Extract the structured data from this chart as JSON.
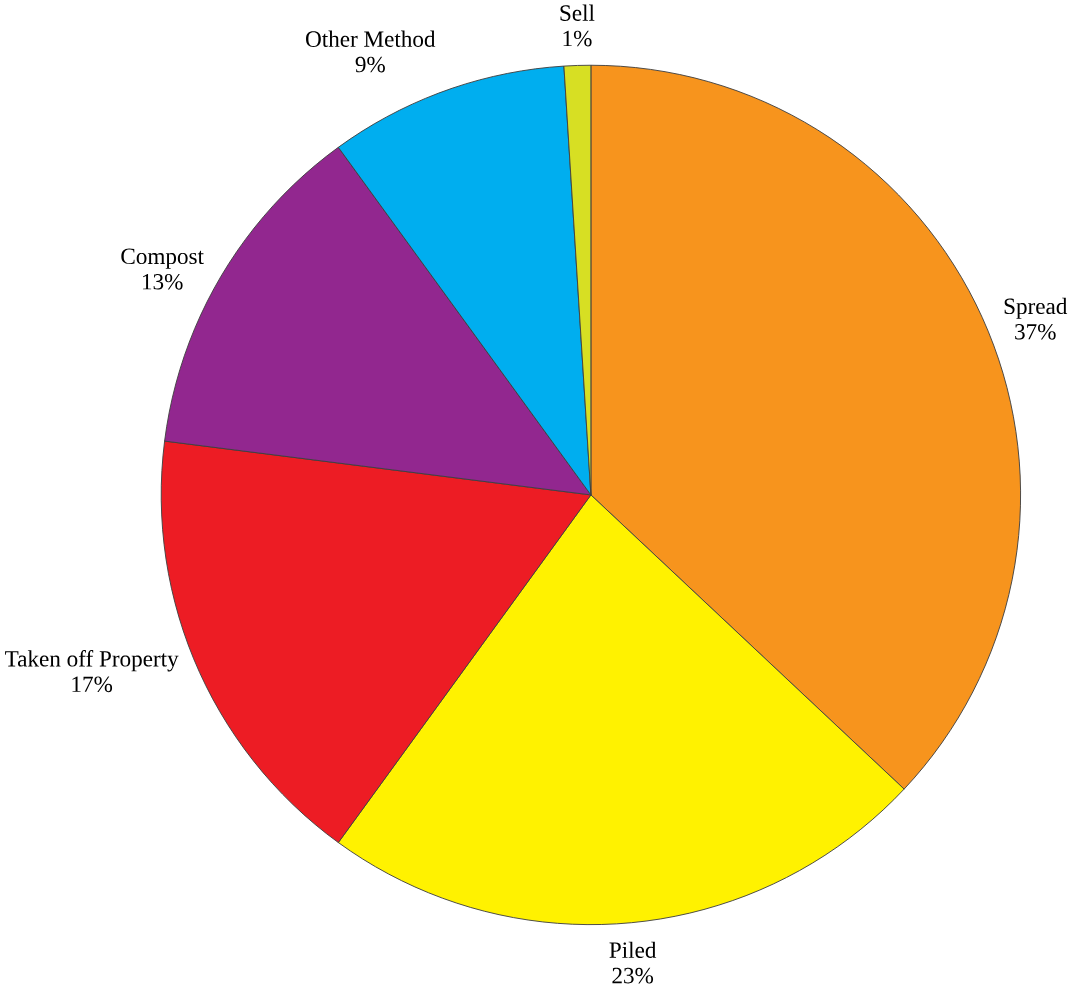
{
  "chart_data": {
    "type": "pie",
    "categories": [
      "Spread",
      "Piled",
      "Taken off Property",
      "Compost",
      "Other Method",
      "Sell"
    ],
    "values": [
      37,
      23,
      17,
      13,
      9,
      1
    ],
    "value_labels": [
      "37%",
      "23%",
      "17%",
      "13%",
      "9%",
      "1%"
    ],
    "colors": [
      "#f7941d",
      "#fff200",
      "#ed1c24",
      "#92278f",
      "#00aeef",
      "#d7df23"
    ]
  }
}
